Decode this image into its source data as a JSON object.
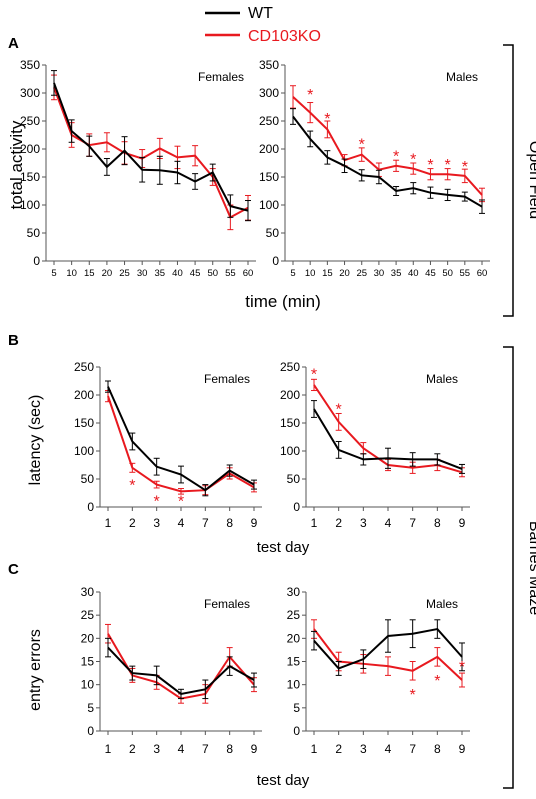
{
  "colors": {
    "wt": "#000000",
    "ko": "#e8191f",
    "axis": "#555555"
  },
  "legend": {
    "items": [
      {
        "label": "WT",
        "color": "#000000"
      },
      {
        "label": "CD103KO",
        "color": "#e8191f"
      }
    ]
  },
  "panel_letters": [
    "A",
    "B",
    "C"
  ],
  "section_labels": {
    "open_field": "Open Field",
    "barnes": "Barnes Maze"
  },
  "chart_data": [
    {
      "panel": "A",
      "type": "line",
      "title": "Females",
      "ylabel": "total activity",
      "xlabel": "",
      "ylim": [
        0,
        350
      ],
      "yticks": [
        0,
        50,
        100,
        150,
        200,
        250,
        300,
        350
      ],
      "x": [
        "5",
        "10",
        "15",
        "20",
        "25",
        "30",
        "35",
        "40",
        "45",
        "50",
        "55",
        "60"
      ],
      "series": [
        {
          "name": "WT",
          "values": [
            318,
            232,
            205,
            168,
            197,
            163,
            162,
            158,
            142,
            158,
            98,
            90
          ],
          "errors": [
            22,
            20,
            18,
            15,
            25,
            22,
            25,
            20,
            14,
            15,
            20,
            18
          ]
        },
        {
          "name": "CD103KO",
          "values": [
            310,
            225,
            207,
            212,
            193,
            183,
            201,
            185,
            188,
            150,
            78,
            95
          ],
          "errors": [
            22,
            22,
            20,
            17,
            20,
            16,
            18,
            20,
            18,
            15,
            22,
            22
          ]
        }
      ],
      "asterisks": []
    },
    {
      "panel": "A",
      "type": "line",
      "title": "Males",
      "ylabel": "",
      "xlabel": "",
      "ylim": [
        0,
        350
      ],
      "yticks": [
        0,
        50,
        100,
        150,
        200,
        250,
        300,
        350
      ],
      "x": [
        "5",
        "10",
        "15",
        "20",
        "25",
        "30",
        "35",
        "40",
        "45",
        "50",
        "55",
        "60"
      ],
      "series": [
        {
          "name": "WT",
          "values": [
            258,
            218,
            185,
            170,
            153,
            150,
            125,
            130,
            122,
            118,
            115,
            97
          ],
          "errors": [
            14,
            14,
            12,
            12,
            10,
            12,
            8,
            10,
            10,
            10,
            8,
            12
          ]
        },
        {
          "name": "CD103KO",
          "values": [
            293,
            265,
            235,
            180,
            190,
            163,
            170,
            165,
            155,
            155,
            152,
            118
          ],
          "errors": [
            20,
            18,
            15,
            10,
            12,
            12,
            10,
            10,
            10,
            10,
            12,
            12
          ]
        }
      ],
      "asterisks": [
        {
          "index": 1,
          "value": 298
        },
        {
          "index": 2,
          "value": 255
        },
        {
          "index": 4,
          "value": 210
        },
        {
          "index": 6,
          "value": 188
        },
        {
          "index": 7,
          "value": 183
        },
        {
          "index": 8,
          "value": 173
        },
        {
          "index": 9,
          "value": 173
        },
        {
          "index": 10,
          "value": 170
        }
      ]
    },
    {
      "panel": "B",
      "type": "line",
      "title": "Females",
      "ylabel": "latency (sec)",
      "xlabel": "",
      "ylim": [
        0,
        250
      ],
      "yticks": [
        0,
        50,
        100,
        150,
        200,
        250
      ],
      "x": [
        "1",
        "2",
        "3",
        "4",
        "7",
        "8",
        "9"
      ],
      "series": [
        {
          "name": "WT",
          "values": [
            215,
            117,
            72,
            58,
            30,
            65,
            40
          ],
          "errors": [
            10,
            15,
            15,
            15,
            10,
            10,
            8
          ]
        },
        {
          "name": "CD103KO",
          "values": [
            198,
            70,
            40,
            28,
            30,
            60,
            35
          ],
          "errors": [
            10,
            8,
            6,
            5,
            8,
            10,
            8
          ]
        }
      ],
      "asterisks": [
        {
          "index": 1,
          "value": 40
        },
        {
          "index": 2,
          "value": 12
        },
        {
          "index": 3,
          "value": 12
        }
      ]
    },
    {
      "panel": "B",
      "type": "line",
      "title": "Males",
      "ylabel": "",
      "xlabel": "",
      "ylim": [
        0,
        250
      ],
      "yticks": [
        0,
        50,
        100,
        150,
        200,
        250
      ],
      "x": [
        "1",
        "2",
        "3",
        "4",
        "7",
        "8",
        "9"
      ],
      "series": [
        {
          "name": "WT",
          "values": [
            175,
            102,
            85,
            87,
            85,
            85,
            68
          ],
          "errors": [
            15,
            15,
            10,
            18,
            12,
            10,
            8
          ]
        },
        {
          "name": "CD103KO",
          "values": [
            218,
            152,
            105,
            75,
            70,
            75,
            62
          ],
          "errors": [
            10,
            15,
            10,
            10,
            10,
            10,
            8
          ]
        }
      ],
      "asterisks": [
        {
          "index": 0,
          "value": 238
        },
        {
          "index": 1,
          "value": 176
        }
      ]
    },
    {
      "panel": "C",
      "type": "line",
      "title": "Females",
      "ylabel": "entry errors",
      "xlabel": "test day",
      "ylim": [
        0,
        30
      ],
      "yticks": [
        0,
        5,
        10,
        15,
        20,
        25,
        30
      ],
      "x": [
        "1",
        "2",
        "3",
        "4",
        "7",
        "8",
        "9"
      ],
      "series": [
        {
          "name": "WT",
          "values": [
            18,
            12.5,
            12,
            8,
            9,
            14,
            11
          ],
          "errors": [
            2,
            1.5,
            2,
            1,
            2,
            2,
            1.5
          ]
        },
        {
          "name": "CD103KO",
          "values": [
            21,
            12,
            10.5,
            7,
            8,
            16,
            10
          ],
          "errors": [
            2,
            1.5,
            1.5,
            1,
            2,
            2,
            1.5
          ]
        }
      ],
      "asterisks": []
    },
    {
      "panel": "C",
      "type": "line",
      "title": "Males",
      "ylabel": "",
      "xlabel": "test day",
      "ylim": [
        0,
        30
      ],
      "yticks": [
        0,
        5,
        10,
        15,
        20,
        25,
        30
      ],
      "x": [
        "1",
        "2",
        "3",
        "4",
        "7",
        "8",
        "9"
      ],
      "series": [
        {
          "name": "WT",
          "values": [
            19.5,
            13.5,
            15.5,
            20.5,
            21,
            22,
            16
          ],
          "errors": [
            2,
            1.5,
            2,
            3.5,
            3,
            2,
            3
          ]
        },
        {
          "name": "CD103KO",
          "values": [
            22,
            15,
            14.5,
            14,
            13,
            16,
            11
          ],
          "errors": [
            2,
            2,
            2,
            2,
            2,
            2,
            1.5
          ]
        }
      ],
      "asterisks": [
        {
          "index": 4,
          "value": 8
        },
        {
          "index": 5,
          "value": 11
        },
        {
          "index": 6,
          "value": 14
        }
      ]
    }
  ],
  "shared_labels": {
    "time_axis": "time (min)",
    "test_day_axis": "test day"
  }
}
